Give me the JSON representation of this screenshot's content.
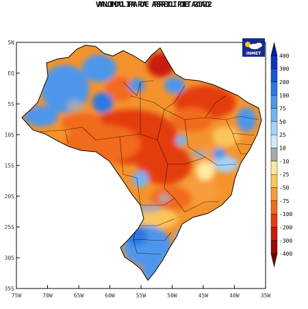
{
  "title_line1": "ANOMALIA DE PRECIPITACAO",
  "title_line2": "VALIDO PARA ABRIL DE 2022",
  "logo": {
    "text": "INMET",
    "icon": "sun-cloud-icon"
  },
  "latitude_ticks": [
    "5N",
    "EQ",
    "5S",
    "10S",
    "15S",
    "20S",
    "25S",
    "30S",
    "35S"
  ],
  "longitude_ticks": [
    "75W",
    "70W",
    "65W",
    "60W",
    "55W",
    "50W",
    "45W",
    "40W",
    "35W"
  ],
  "colorbar": {
    "ticks": [
      "400",
      "300",
      "200",
      "100",
      "75",
      "50",
      "25",
      "10",
      "-10",
      "-25",
      "-50",
      "-75",
      "-100",
      "-200",
      "-300",
      "-400"
    ],
    "colors": [
      "#0b1f8f",
      "#1034b8",
      "#1a56d6",
      "#2a78e4",
      "#4d96ec",
      "#74b2f2",
      "#a6d1f7",
      "#cfe9fb",
      "#a9a9a9",
      "#fde8a0",
      "#fbc55c",
      "#f79b3a",
      "#f26a1e",
      "#e43d0f",
      "#c81d0a",
      "#9b0a05",
      "#6b0000"
    ]
  }
}
